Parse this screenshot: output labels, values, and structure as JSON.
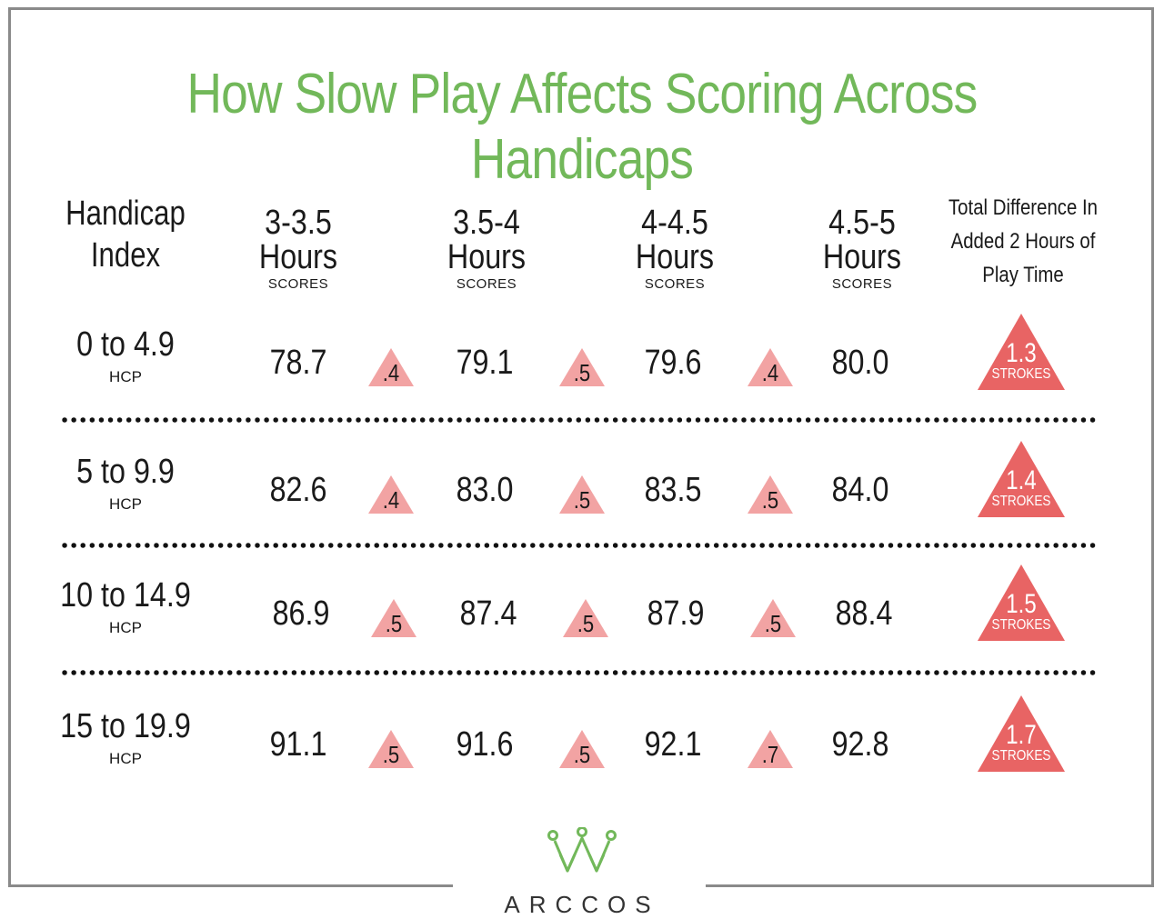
{
  "title": "How Slow Play Affects Scoring Across Handicaps",
  "headers": {
    "index": "Handicap Index",
    "columns": [
      {
        "range": "3-3.5",
        "unit": "Hours",
        "sub": "SCORES"
      },
      {
        "range": "3.5-4",
        "unit": "Hours",
        "sub": "SCORES"
      },
      {
        "range": "4-4.5",
        "unit": "Hours",
        "sub": "SCORES"
      },
      {
        "range": "4.5-5",
        "unit": "Hours",
        "sub": "SCORES"
      }
    ],
    "total": "Total Difference In Added 2 Hours of Play Time"
  },
  "rows": [
    {
      "range": "0 to 4.9",
      "label": "HCP",
      "scores": [
        "78.7",
        "79.1",
        "79.6",
        "80.0"
      ],
      "deltas": [
        ".4",
        ".5",
        ".4"
      ],
      "total": "1.3",
      "total_unit": "STROKES"
    },
    {
      "range": "5 to 9.9",
      "label": "HCP",
      "scores": [
        "82.6",
        "83.0",
        "83.5",
        "84.0"
      ],
      "deltas": [
        ".4",
        ".5",
        ".5"
      ],
      "total": "1.4",
      "total_unit": "STROKES"
    },
    {
      "range": "10 to 14.9",
      "label": "HCP",
      "scores": [
        "86.9",
        "87.4",
        "87.9",
        "88.4"
      ],
      "deltas": [
        ".5",
        ".5",
        ".5"
      ],
      "total": "1.5",
      "total_unit": "STROKES"
    },
    {
      "range": "15 to 19.9",
      "label": "HCP",
      "scores": [
        "91.1",
        "91.6",
        "92.1",
        "92.8"
      ],
      "deltas": [
        ".5",
        ".5",
        ".7"
      ],
      "total": "1.7",
      "total_unit": "STROKES"
    }
  ],
  "brand": "ARCCOS",
  "colors": {
    "title": "#72b85a",
    "triangle_light": "#f2a3a3",
    "triangle_dark": "#e86464",
    "logo": "#72b85a"
  }
}
